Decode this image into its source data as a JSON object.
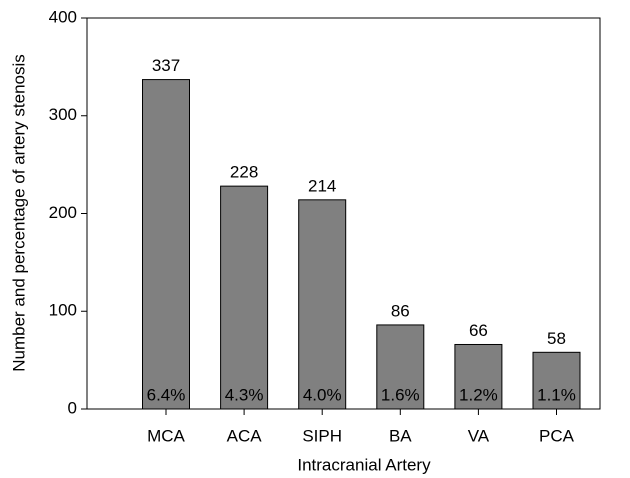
{
  "chart_data": {
    "type": "bar",
    "xlabel": "Intracranial Artery",
    "ylabel": "Number and percentage of artery stenosis",
    "categories": [
      "MCA",
      "ACA",
      "SIPH",
      "BA",
      "VA",
      "PCA"
    ],
    "values": [
      337,
      228,
      214,
      86,
      66,
      58
    ],
    "percent_labels": [
      "6.4%",
      "4.3%",
      "4.0%",
      "1.6%",
      "1.2%",
      "1.1%"
    ],
    "color": "#808080",
    "ylim": [
      0,
      400
    ],
    "yticks": [
      0,
      100,
      200,
      300,
      400
    ],
    "grid": false
  }
}
